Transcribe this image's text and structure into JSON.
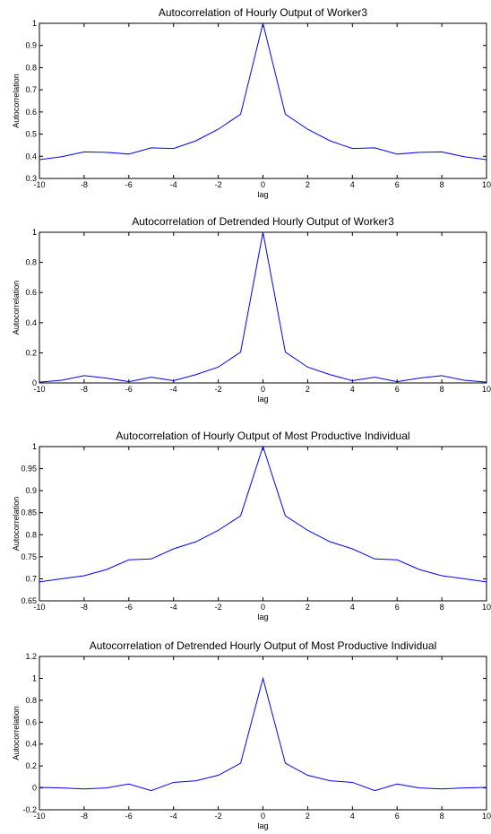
{
  "chart_data": [
    {
      "type": "line",
      "title": "Autocorrelation of Hourly Output of Worker3",
      "xlabel": "lag",
      "ylabel": "Autocorrelation",
      "xlim": [
        -10,
        10
      ],
      "ylim": [
        0.3,
        1
      ],
      "xticks": [
        -10,
        -8,
        -6,
        -4,
        -2,
        0,
        2,
        4,
        6,
        8,
        10
      ],
      "xtick_labels": [
        "-10",
        "-8",
        "-6",
        "-4",
        "-2",
        "0",
        "2",
        "4",
        "6",
        "8",
        "10"
      ],
      "yticks": [
        0.3,
        0.4,
        0.5,
        0.6,
        0.7,
        0.8,
        0.9,
        1
      ],
      "ytick_labels": [
        "0.3",
        "0.4",
        "0.5",
        "0.6",
        "0.7",
        "0.8",
        "0.9",
        "1"
      ],
      "grid": false,
      "color": "#0000ff",
      "x": [
        -10,
        -9,
        -8,
        -7,
        -6,
        -5,
        -4,
        -3,
        -2,
        -1,
        0,
        1,
        2,
        3,
        4,
        5,
        6,
        7,
        8,
        9,
        10
      ],
      "y": [
        0.385,
        0.398,
        0.42,
        0.418,
        0.41,
        0.438,
        0.435,
        0.47,
        0.522,
        0.59,
        1.0,
        0.59,
        0.522,
        0.47,
        0.435,
        0.438,
        0.41,
        0.418,
        0.42,
        0.398,
        0.385
      ]
    },
    {
      "type": "line",
      "title": "Autocorrelation of Detrended Hourly Output of Worker3",
      "xlabel": "lag",
      "ylabel": "Autocorrelation",
      "xlim": [
        -10,
        10
      ],
      "ylim": [
        0,
        1
      ],
      "xticks": [
        -10,
        -8,
        -6,
        -4,
        -2,
        0,
        2,
        4,
        6,
        8,
        10
      ],
      "xtick_labels": [
        "-10",
        "-8",
        "-6",
        "-4",
        "-2",
        "0",
        "2",
        "4",
        "6",
        "8",
        "10"
      ],
      "yticks": [
        0,
        0.2,
        0.4,
        0.6,
        0.8,
        1
      ],
      "ytick_labels": [
        "0",
        "0.2",
        "0.4",
        "0.6",
        "0.8",
        "1"
      ],
      "grid": false,
      "color": "#0000ff",
      "x": [
        -10,
        -9,
        -8,
        -7,
        -6,
        -5,
        -4,
        -3,
        -2,
        -1,
        0,
        1,
        2,
        3,
        4,
        5,
        6,
        7,
        8,
        9,
        10
      ],
      "y": [
        0.005,
        0.018,
        0.048,
        0.032,
        0.008,
        0.038,
        0.015,
        0.055,
        0.105,
        0.205,
        1.0,
        0.205,
        0.105,
        0.055,
        0.015,
        0.038,
        0.008,
        0.032,
        0.048,
        0.018,
        0.005
      ]
    },
    {
      "type": "line",
      "title": "Autocorrelation of Hourly Output of Most Productive Individual",
      "xlabel": "lag",
      "ylabel": "Autocorrelation",
      "xlim": [
        -10,
        10
      ],
      "ylim": [
        0.65,
        1
      ],
      "xticks": [
        -10,
        -8,
        -6,
        -4,
        -2,
        0,
        2,
        4,
        6,
        8,
        10
      ],
      "xtick_labels": [
        "-10",
        "-8",
        "-6",
        "-4",
        "-2",
        "0",
        "2",
        "4",
        "6",
        "8",
        "10"
      ],
      "yticks": [
        0.65,
        0.7,
        0.75,
        0.8,
        0.85,
        0.9,
        0.95,
        1
      ],
      "ytick_labels": [
        "0.65",
        "0.7",
        "0.75",
        "0.8",
        "0.85",
        "0.9",
        "0.95",
        "1"
      ],
      "grid": false,
      "color": "#0000ff",
      "x": [
        -10,
        -9,
        -8,
        -7,
        -6,
        -5,
        -4,
        -3,
        -2,
        -1,
        0,
        1,
        2,
        3,
        4,
        5,
        6,
        7,
        8,
        9,
        10
      ],
      "y": [
        0.693,
        0.7,
        0.707,
        0.721,
        0.743,
        0.745,
        0.768,
        0.784,
        0.81,
        0.843,
        1.0,
        0.843,
        0.81,
        0.784,
        0.768,
        0.745,
        0.743,
        0.721,
        0.707,
        0.7,
        0.693
      ]
    },
    {
      "type": "line",
      "title": "Autocorrelation of Detrended Hourly Output of Most Productive Individual",
      "xlabel": "lag",
      "ylabel": "Autocorrelation",
      "xlim": [
        -10,
        10
      ],
      "ylim": [
        -0.2,
        1.2
      ],
      "xticks": [
        -10,
        -8,
        -6,
        -4,
        -2,
        0,
        2,
        4,
        6,
        8,
        10
      ],
      "xtick_labels": [
        "-10",
        "-8",
        "-6",
        "-4",
        "-2",
        "0",
        "2",
        "4",
        "6",
        "8",
        "10"
      ],
      "yticks": [
        -0.2,
        0,
        0.2,
        0.4,
        0.6,
        0.8,
        1,
        1.2
      ],
      "ytick_labels": [
        "-0.2",
        "0",
        "0.2",
        "0.4",
        "0.6",
        "0.8",
        "1",
        "1.2"
      ],
      "grid": false,
      "color": "#0000ff",
      "x": [
        -10,
        -9,
        -8,
        -7,
        -6,
        -5,
        -4,
        -3,
        -2,
        -1,
        0,
        1,
        2,
        3,
        4,
        5,
        6,
        7,
        8,
        9,
        10
      ],
      "y": [
        0.005,
        0.0,
        -0.01,
        0.0,
        0.035,
        -0.025,
        0.05,
        0.065,
        0.115,
        0.225,
        1.0,
        0.225,
        0.115,
        0.065,
        0.05,
        -0.025,
        0.035,
        0.0,
        -0.01,
        0.0,
        0.005
      ]
    }
  ]
}
